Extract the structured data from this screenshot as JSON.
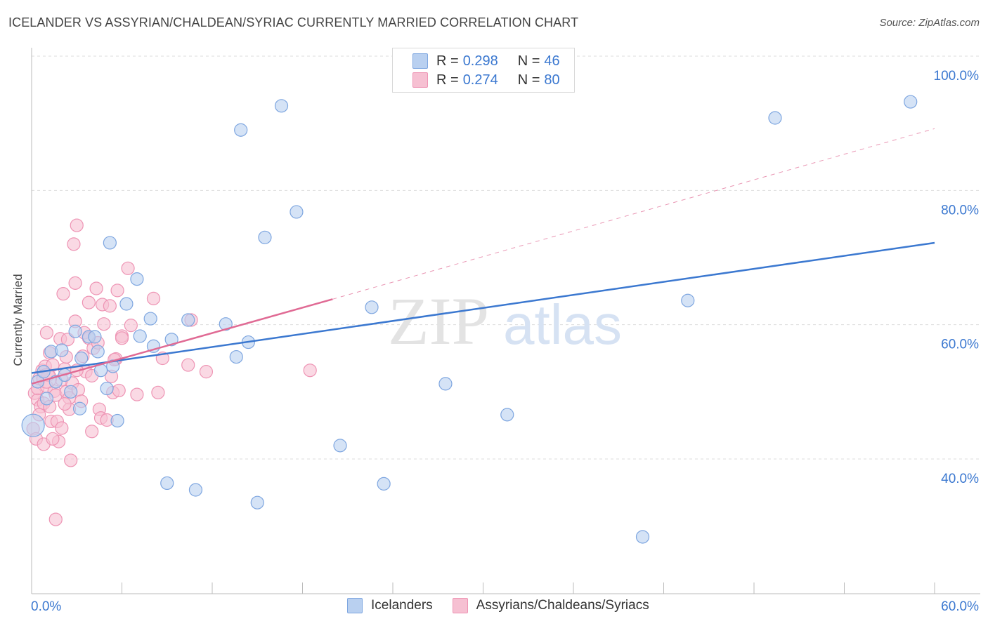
{
  "title": "ICELANDER VS ASSYRIAN/CHALDEAN/SYRIAC CURRENTLY MARRIED CORRELATION CHART",
  "source": "Source: ZipAtlas.com",
  "watermark": {
    "zip": "ZIP",
    "atlas": "atlas"
  },
  "colors": {
    "blue": "#3b78d0",
    "blue_fill": "#b9d0f0",
    "blue_stroke": "#7ea6e0",
    "pink": "#e06a94",
    "pink_fill": "#f6c0d2",
    "pink_stroke": "#ee94b4",
    "grid": "#dddddd",
    "axis_label": "#3b78d0"
  },
  "legend": {
    "rows": [
      {
        "r_label": "R = ",
        "r_value": "0.298",
        "n_label": "N = ",
        "n_value": "46"
      },
      {
        "r_label": "R = ",
        "r_value": "0.274",
        "n_label": "N = ",
        "n_value": "80"
      }
    ]
  },
  "bottom_legend": [
    "Icelanders",
    "Assyrians/Chaldeans/Syriacs"
  ],
  "chart_data": {
    "type": "scatter",
    "title": "ICELANDER VS ASSYRIAN/CHALDEAN/SYRIAC CURRENTLY MARRIED CORRELATION CHART",
    "xlabel": "",
    "ylabel": "Currently Married",
    "xlim": [
      0,
      60
    ],
    "ylim": [
      20,
      103
    ],
    "x_tick_labels": [
      "0.0%",
      "60.0%"
    ],
    "y_ticks": [
      40,
      60,
      80,
      100
    ],
    "y_tick_labels": [
      "40.0%",
      "60.0%",
      "80.0%",
      "100.0%"
    ],
    "grid": true,
    "series": [
      {
        "name": "Icelanders",
        "R": 0.298,
        "N": 46,
        "trend": {
          "x0": 0,
          "y0": 52.8,
          "x1": 60,
          "y1": 72.2,
          "dashed_to": null
        },
        "points": [
          [
            0.1,
            45.0,
            16
          ],
          [
            0.4,
            51.5,
            9
          ],
          [
            0.8,
            53.0,
            9
          ],
          [
            1.0,
            49.0,
            9
          ],
          [
            1.3,
            56.0,
            9
          ],
          [
            1.6,
            51.5,
            9
          ],
          [
            2.0,
            56.2,
            9
          ],
          [
            2.2,
            52.5,
            9
          ],
          [
            2.6,
            50.0,
            9
          ],
          [
            2.9,
            59.0,
            9
          ],
          [
            3.2,
            47.5,
            9
          ],
          [
            3.3,
            55.0,
            9
          ],
          [
            3.8,
            58.2,
            9
          ],
          [
            4.2,
            58.2,
            9
          ],
          [
            4.4,
            56.0,
            9
          ],
          [
            4.6,
            53.2,
            9
          ],
          [
            5.0,
            50.5,
            9
          ],
          [
            5.2,
            72.2,
            9
          ],
          [
            5.4,
            53.8,
            9
          ],
          [
            5.7,
            45.7,
            9
          ],
          [
            6.3,
            63.1,
            9
          ],
          [
            7.0,
            66.8,
            9
          ],
          [
            7.2,
            58.3,
            9
          ],
          [
            7.9,
            60.9,
            9
          ],
          [
            8.1,
            56.8,
            9
          ],
          [
            9.0,
            36.4,
            9
          ],
          [
            9.3,
            57.8,
            9
          ],
          [
            10.4,
            60.7,
            9
          ],
          [
            10.9,
            35.4,
            9
          ],
          [
            12.9,
            60.1,
            9
          ],
          [
            13.6,
            55.2,
            9
          ],
          [
            13.9,
            89.0,
            9
          ],
          [
            14.4,
            57.4,
            9
          ],
          [
            15.0,
            33.5,
            9
          ],
          [
            15.5,
            73.0,
            9
          ],
          [
            16.6,
            92.6,
            9
          ],
          [
            17.6,
            76.8,
            9
          ],
          [
            20.5,
            42.0,
            9
          ],
          [
            22.6,
            62.6,
            9
          ],
          [
            23.4,
            36.3,
            9
          ],
          [
            27.5,
            51.2,
            9
          ],
          [
            31.6,
            46.6,
            9
          ],
          [
            40.6,
            28.4,
            9
          ],
          [
            43.6,
            63.6,
            9
          ],
          [
            49.4,
            90.8,
            9
          ],
          [
            58.4,
            93.2,
            9
          ]
        ]
      },
      {
        "name": "Assyrians/Chaldeans/Syriacs",
        "R": 0.274,
        "N": 80,
        "trend": {
          "x0": 0,
          "y0": 51.2,
          "x1": 20.0,
          "y1": 63.8,
          "dashed_x1": 60,
          "dashed_y1": 89.2
        },
        "points": [
          [
            0.1,
            44.5,
            9
          ],
          [
            0.2,
            49.8,
            9
          ],
          [
            0.3,
            43.0,
            9
          ],
          [
            0.4,
            48.8,
            9
          ],
          [
            0.4,
            50.5,
            9
          ],
          [
            0.5,
            52.0,
            9
          ],
          [
            0.6,
            47.8,
            9
          ],
          [
            0.7,
            53.2,
            9
          ],
          [
            0.8,
            42.2,
            9
          ],
          [
            0.8,
            48.3,
            9
          ],
          [
            0.9,
            53.8,
            9
          ],
          [
            1.0,
            50.8,
            9
          ],
          [
            1.0,
            58.8,
            9
          ],
          [
            1.1,
            52.5,
            9
          ],
          [
            1.2,
            47.8,
            9
          ],
          [
            1.2,
            55.8,
            9
          ],
          [
            1.3,
            45.6,
            9
          ],
          [
            1.4,
            54.0,
            9
          ],
          [
            1.5,
            50.1,
            9
          ],
          [
            1.6,
            31.0,
            9
          ],
          [
            1.6,
            49.5,
            9
          ],
          [
            1.7,
            45.6,
            9
          ],
          [
            1.8,
            42.6,
            9
          ],
          [
            1.9,
            57.9,
            9
          ],
          [
            2.0,
            44.6,
            9
          ],
          [
            2.0,
            51.8,
            9
          ],
          [
            2.1,
            64.6,
            9
          ],
          [
            2.2,
            53.4,
            9
          ],
          [
            2.3,
            50.0,
            9
          ],
          [
            2.3,
            55.2,
            9
          ],
          [
            2.4,
            57.8,
            9
          ],
          [
            2.5,
            49.1,
            9
          ],
          [
            2.5,
            47.4,
            9
          ],
          [
            2.6,
            39.8,
            9
          ],
          [
            2.7,
            51.3,
            9
          ],
          [
            2.8,
            72.0,
            9
          ],
          [
            2.9,
            60.5,
            9
          ],
          [
            2.9,
            66.2,
            9
          ],
          [
            3.1,
            50.3,
            9
          ],
          [
            3.3,
            48.6,
            9
          ],
          [
            3.0,
            74.8,
            9
          ],
          [
            3.4,
            55.3,
            9
          ],
          [
            3.5,
            58.8,
            9
          ],
          [
            3.6,
            53.0,
            9
          ],
          [
            3.8,
            63.3,
            9
          ],
          [
            3.8,
            58.0,
            9
          ],
          [
            4.0,
            44.1,
            9
          ],
          [
            4.1,
            56.5,
            9
          ],
          [
            4.3,
            65.4,
            9
          ],
          [
            4.4,
            57.3,
            9
          ],
          [
            4.5,
            47.4,
            9
          ],
          [
            4.6,
            46.1,
            9
          ],
          [
            4.7,
            63.0,
            9
          ],
          [
            4.8,
            60.1,
            9
          ],
          [
            5.0,
            45.8,
            9
          ],
          [
            5.2,
            62.8,
            9
          ],
          [
            5.3,
            52.3,
            9
          ],
          [
            5.4,
            49.9,
            9
          ],
          [
            5.6,
            54.9,
            9
          ],
          [
            5.7,
            65.1,
            9
          ],
          [
            5.8,
            50.2,
            9
          ],
          [
            6.0,
            58.3,
            9
          ],
          [
            6.4,
            68.4,
            9
          ],
          [
            6.6,
            59.9,
            9
          ],
          [
            7.0,
            49.6,
            9
          ],
          [
            8.1,
            63.9,
            9
          ],
          [
            8.4,
            49.9,
            9
          ],
          [
            8.7,
            55.0,
            9
          ],
          [
            10.4,
            54.0,
            9
          ],
          [
            10.6,
            60.7,
            9
          ],
          [
            11.6,
            53.0,
            9
          ],
          [
            18.5,
            53.2,
            9
          ],
          [
            1.0,
            52.0,
            14
          ],
          [
            0.5,
            46.6,
            9
          ],
          [
            1.4,
            43.0,
            9
          ],
          [
            3.0,
            53.2,
            9
          ],
          [
            2.2,
            48.2,
            9
          ],
          [
            5.5,
            54.8,
            9
          ],
          [
            6.0,
            58.0,
            9
          ],
          [
            4.0,
            52.4,
            9
          ]
        ]
      }
    ]
  }
}
